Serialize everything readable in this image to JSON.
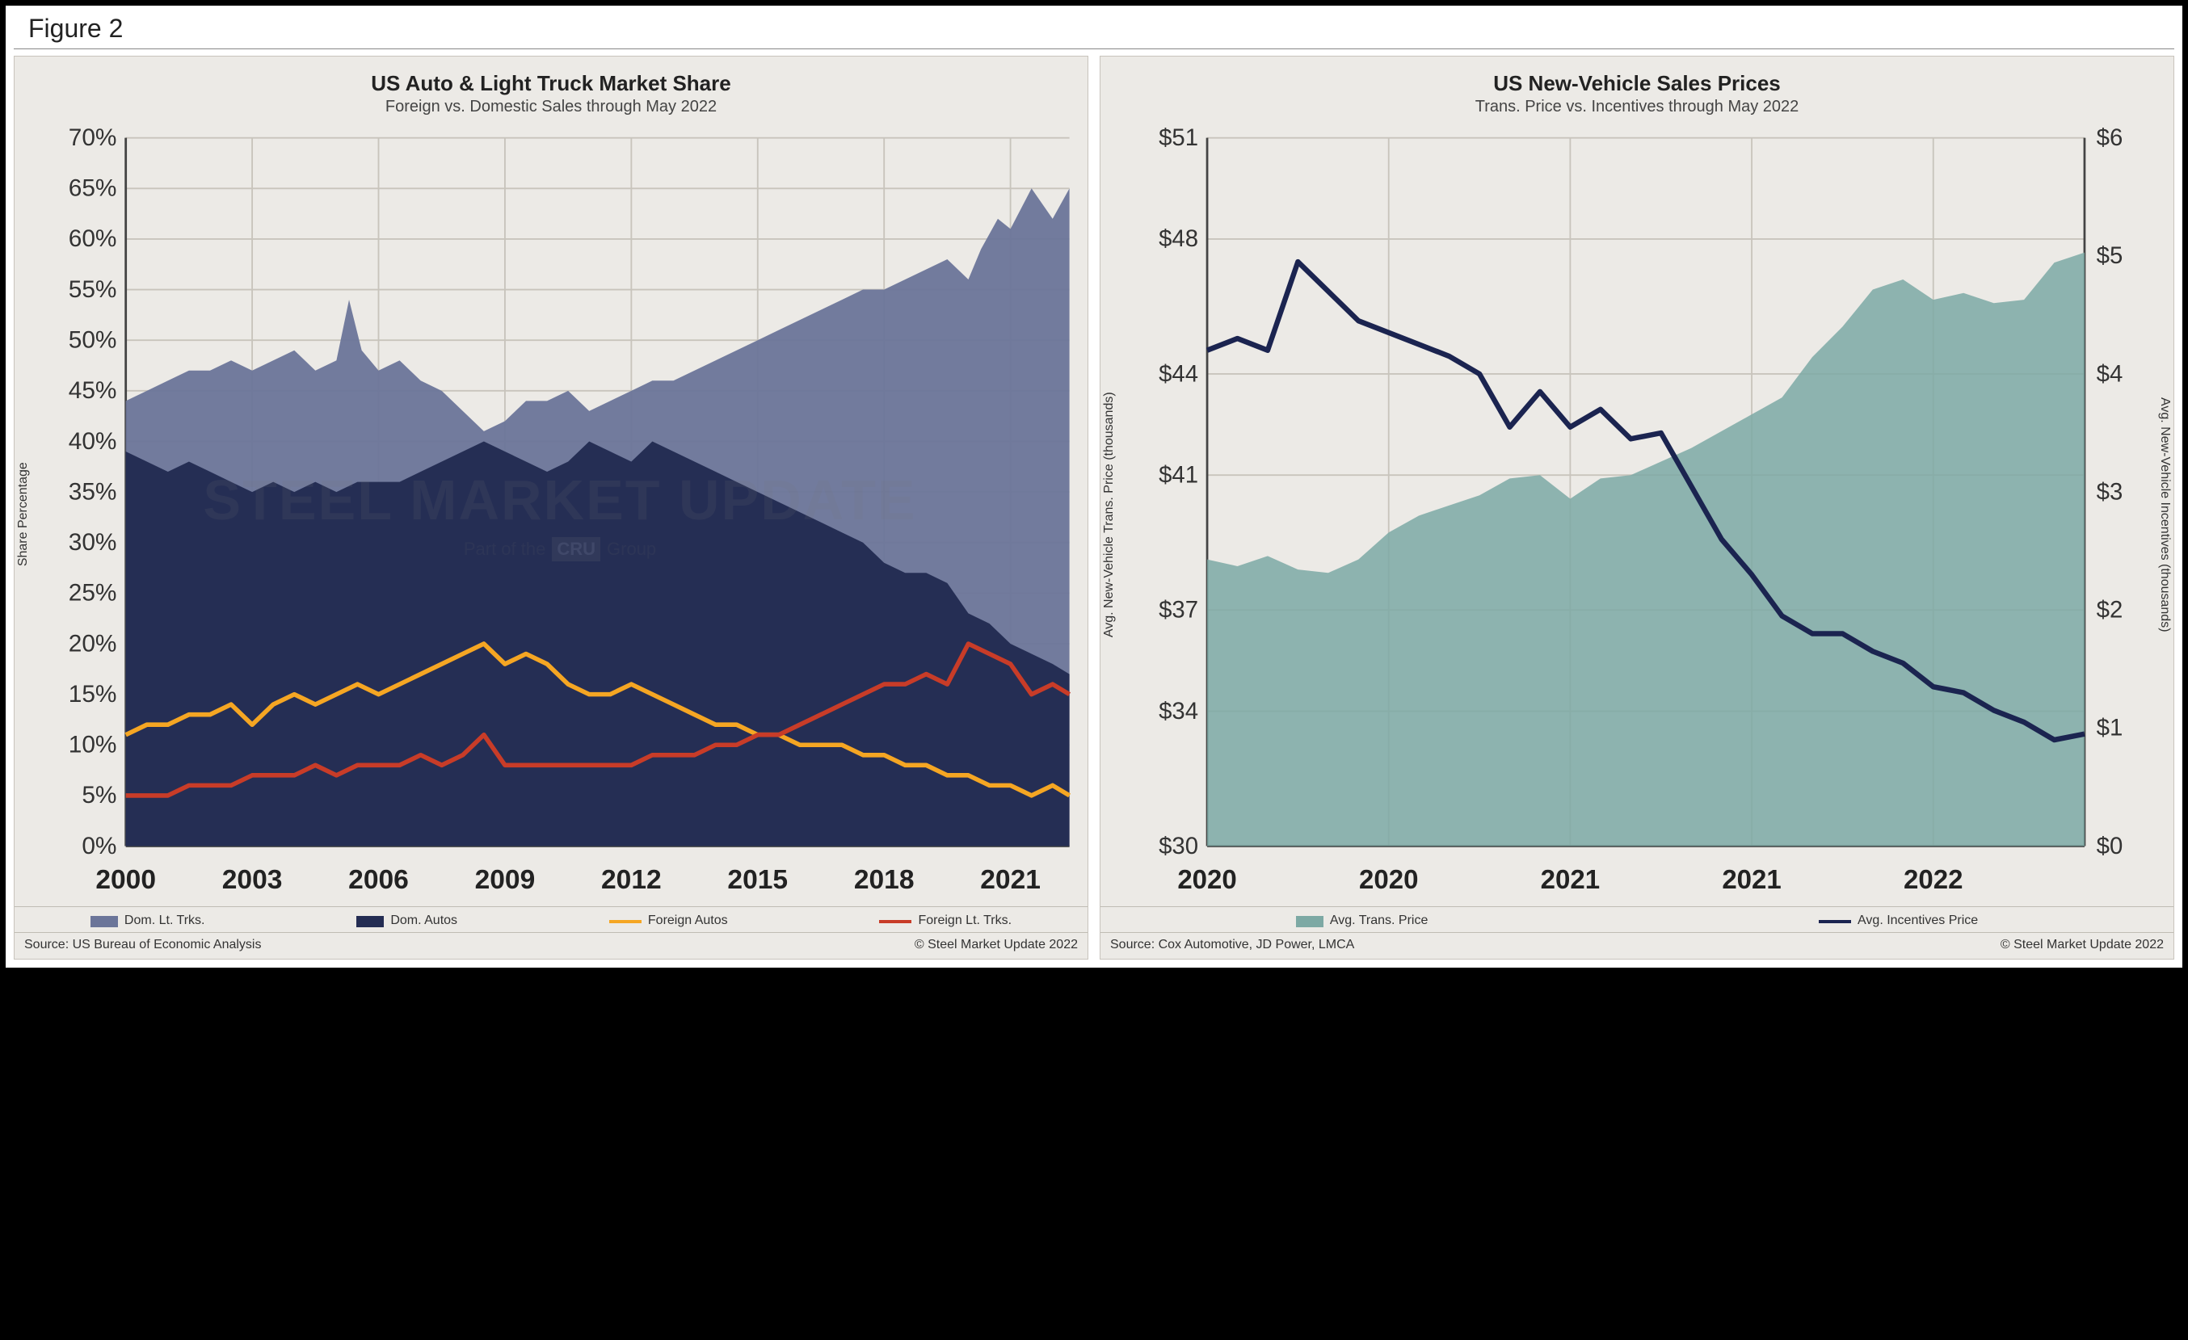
{
  "figure_label": "Figure 2",
  "watermark": {
    "main": "STEEL MARKET UPDATE",
    "sub_prefix": "Part of the",
    "sub_badge": "CRU",
    "sub_suffix": "Group"
  },
  "panel_background": "#eceae6",
  "chart1": {
    "title": "US Auto & Light Truck Market Share",
    "subtitle": "Foreign vs. Domestic Sales through May 2022",
    "y_label": "Share Percentage",
    "ylim": [
      0,
      70
    ],
    "ytick_step": 5,
    "y_suffix": "%",
    "x_start": 2000,
    "x_end": 2022.4,
    "x_ticks": [
      2000,
      2003,
      2006,
      2009,
      2012,
      2015,
      2018,
      2021
    ],
    "grid_color": "#c8c4bc",
    "series": {
      "dom_lt_trks": {
        "label": "Dom. Lt. Trks.",
        "type": "area",
        "color": "#6b7599",
        "opacity": 0.95,
        "data": [
          [
            2000,
            44
          ],
          [
            2000.5,
            45
          ],
          [
            2001,
            46
          ],
          [
            2001.5,
            47
          ],
          [
            2002,
            47
          ],
          [
            2002.5,
            48
          ],
          [
            2003,
            47
          ],
          [
            2003.5,
            48
          ],
          [
            2004,
            49
          ],
          [
            2004.5,
            47
          ],
          [
            2005,
            48
          ],
          [
            2005.3,
            54
          ],
          [
            2005.6,
            49
          ],
          [
            2006,
            47
          ],
          [
            2006.5,
            48
          ],
          [
            2007,
            46
          ],
          [
            2007.5,
            45
          ],
          [
            2008,
            43
          ],
          [
            2008.5,
            41
          ],
          [
            2009,
            42
          ],
          [
            2009.5,
            44
          ],
          [
            2010,
            44
          ],
          [
            2010.5,
            45
          ],
          [
            2011,
            43
          ],
          [
            2011.5,
            44
          ],
          [
            2012,
            45
          ],
          [
            2012.5,
            46
          ],
          [
            2013,
            46
          ],
          [
            2013.5,
            47
          ],
          [
            2014,
            48
          ],
          [
            2014.5,
            49
          ],
          [
            2015,
            50
          ],
          [
            2015.5,
            51
          ],
          [
            2016,
            52
          ],
          [
            2016.5,
            53
          ],
          [
            2017,
            54
          ],
          [
            2017.5,
            55
          ],
          [
            2018,
            55
          ],
          [
            2018.5,
            56
          ],
          [
            2019,
            57
          ],
          [
            2019.5,
            58
          ],
          [
            2020,
            56
          ],
          [
            2020.3,
            59
          ],
          [
            2020.7,
            62
          ],
          [
            2021,
            61
          ],
          [
            2021.5,
            65
          ],
          [
            2022,
            62
          ],
          [
            2022.4,
            65
          ]
        ]
      },
      "dom_autos": {
        "label": "Dom. Autos",
        "type": "area",
        "color": "#242d53",
        "opacity": 0.98,
        "data": [
          [
            2000,
            39
          ],
          [
            2000.5,
            38
          ],
          [
            2001,
            37
          ],
          [
            2001.5,
            38
          ],
          [
            2002,
            37
          ],
          [
            2002.5,
            36
          ],
          [
            2003,
            35
          ],
          [
            2003.5,
            36
          ],
          [
            2004,
            35
          ],
          [
            2004.5,
            36
          ],
          [
            2005,
            35
          ],
          [
            2005.5,
            36
          ],
          [
            2006,
            36
          ],
          [
            2006.5,
            36
          ],
          [
            2007,
            37
          ],
          [
            2007.5,
            38
          ],
          [
            2008,
            39
          ],
          [
            2008.5,
            40
          ],
          [
            2009,
            39
          ],
          [
            2009.5,
            38
          ],
          [
            2010,
            37
          ],
          [
            2010.5,
            38
          ],
          [
            2011,
            40
          ],
          [
            2011.5,
            39
          ],
          [
            2012,
            38
          ],
          [
            2012.5,
            40
          ],
          [
            2013,
            39
          ],
          [
            2013.5,
            38
          ],
          [
            2014,
            37
          ],
          [
            2014.5,
            36
          ],
          [
            2015,
            35
          ],
          [
            2015.5,
            34
          ],
          [
            2016,
            33
          ],
          [
            2016.5,
            32
          ],
          [
            2017,
            31
          ],
          [
            2017.5,
            30
          ],
          [
            2018,
            28
          ],
          [
            2018.5,
            27
          ],
          [
            2019,
            27
          ],
          [
            2019.5,
            26
          ],
          [
            2020,
            23
          ],
          [
            2020.5,
            22
          ],
          [
            2021,
            20
          ],
          [
            2021.5,
            19
          ],
          [
            2022,
            18
          ],
          [
            2022.4,
            17
          ]
        ]
      },
      "foreign_autos": {
        "label": "Foreign Autos",
        "type": "line",
        "color": "#f5a623",
        "width": 3,
        "data": [
          [
            2000,
            11
          ],
          [
            2000.5,
            12
          ],
          [
            2001,
            12
          ],
          [
            2001.5,
            13
          ],
          [
            2002,
            13
          ],
          [
            2002.5,
            14
          ],
          [
            2003,
            12
          ],
          [
            2003.5,
            14
          ],
          [
            2004,
            15
          ],
          [
            2004.5,
            14
          ],
          [
            2005,
            15
          ],
          [
            2005.5,
            16
          ],
          [
            2006,
            15
          ],
          [
            2006.5,
            16
          ],
          [
            2007,
            17
          ],
          [
            2007.5,
            18
          ],
          [
            2008,
            19
          ],
          [
            2008.5,
            20
          ],
          [
            2009,
            18
          ],
          [
            2009.5,
            19
          ],
          [
            2010,
            18
          ],
          [
            2010.5,
            16
          ],
          [
            2011,
            15
          ],
          [
            2011.5,
            15
          ],
          [
            2012,
            16
          ],
          [
            2012.5,
            15
          ],
          [
            2013,
            14
          ],
          [
            2013.5,
            13
          ],
          [
            2014,
            12
          ],
          [
            2014.5,
            12
          ],
          [
            2015,
            11
          ],
          [
            2015.5,
            11
          ],
          [
            2016,
            10
          ],
          [
            2016.5,
            10
          ],
          [
            2017,
            10
          ],
          [
            2017.5,
            9
          ],
          [
            2018,
            9
          ],
          [
            2018.5,
            8
          ],
          [
            2019,
            8
          ],
          [
            2019.5,
            7
          ],
          [
            2020,
            7
          ],
          [
            2020.5,
            6
          ],
          [
            2021,
            6
          ],
          [
            2021.5,
            5
          ],
          [
            2022,
            6
          ],
          [
            2022.4,
            5
          ]
        ]
      },
      "foreign_lt_trks": {
        "label": "Foreign Lt. Trks.",
        "type": "line",
        "color": "#c83c28",
        "width": 3,
        "data": [
          [
            2000,
            5
          ],
          [
            2000.5,
            5
          ],
          [
            2001,
            5
          ],
          [
            2001.5,
            6
          ],
          [
            2002,
            6
          ],
          [
            2002.5,
            6
          ],
          [
            2003,
            7
          ],
          [
            2003.5,
            7
          ],
          [
            2004,
            7
          ],
          [
            2004.5,
            8
          ],
          [
            2005,
            7
          ],
          [
            2005.5,
            8
          ],
          [
            2006,
            8
          ],
          [
            2006.5,
            8
          ],
          [
            2007,
            9
          ],
          [
            2007.5,
            8
          ],
          [
            2008,
            9
          ],
          [
            2008.5,
            11
          ],
          [
            2009,
            8
          ],
          [
            2009.5,
            8
          ],
          [
            2010,
            8
          ],
          [
            2010.5,
            8
          ],
          [
            2011,
            8
          ],
          [
            2011.5,
            8
          ],
          [
            2012,
            8
          ],
          [
            2012.5,
            9
          ],
          [
            2013,
            9
          ],
          [
            2013.5,
            9
          ],
          [
            2014,
            10
          ],
          [
            2014.5,
            10
          ],
          [
            2015,
            11
          ],
          [
            2015.5,
            11
          ],
          [
            2016,
            12
          ],
          [
            2016.5,
            13
          ],
          [
            2017,
            14
          ],
          [
            2017.5,
            15
          ],
          [
            2018,
            16
          ],
          [
            2018.5,
            16
          ],
          [
            2019,
            17
          ],
          [
            2019.5,
            16
          ],
          [
            2020,
            20
          ],
          [
            2020.5,
            19
          ],
          [
            2021,
            18
          ],
          [
            2021.5,
            15
          ],
          [
            2022,
            16
          ],
          [
            2022.4,
            15
          ]
        ]
      }
    },
    "legend_order": [
      "dom_lt_trks",
      "dom_autos",
      "foreign_autos",
      "foreign_lt_trks"
    ],
    "source": "Source: US Bureau of Economic Analysis",
    "copyright": "© Steel Market Update 2022"
  },
  "chart2": {
    "title": "US New-Vehicle Sales Prices",
    "subtitle": "Trans. Price vs. Incentives through May 2022",
    "y_label_left": "Avg. New-Vehicle Trans. Price (thousands)",
    "y_label_right": "Avg. New-Vehicle Incentives (thousands)",
    "ylim_left": [
      30,
      51
    ],
    "yticks_left": [
      30,
      34,
      37,
      41,
      44,
      48,
      51
    ],
    "y_prefix_left": "$",
    "ylim_right": [
      0,
      6
    ],
    "ytick_step_right": 1,
    "y_prefix_right": "$",
    "x_start": 0,
    "x_end": 29,
    "x_ticks": [
      {
        "pos": 0,
        "label": "2020"
      },
      {
        "pos": 6,
        "label": "2020"
      },
      {
        "pos": 12,
        "label": "2021"
      },
      {
        "pos": 18,
        "label": "2021"
      },
      {
        "pos": 24,
        "label": "2022"
      }
    ],
    "grid_color": "#c8c4bc",
    "series": {
      "trans_price": {
        "label": "Avg. Trans. Price",
        "type": "area",
        "axis": "left",
        "color": "#7da9a4",
        "opacity": 0.85,
        "data": [
          [
            0,
            38.5
          ],
          [
            1,
            38.3
          ],
          [
            2,
            38.6
          ],
          [
            3,
            38.2
          ],
          [
            4,
            38.1
          ],
          [
            5,
            38.5
          ],
          [
            6,
            39.3
          ],
          [
            7,
            39.8
          ],
          [
            8,
            40.1
          ],
          [
            9,
            40.4
          ],
          [
            10,
            40.9
          ],
          [
            11,
            41.0
          ],
          [
            12,
            40.3
          ],
          [
            13,
            40.9
          ],
          [
            14,
            41.0
          ],
          [
            15,
            41.4
          ],
          [
            16,
            41.8
          ],
          [
            17,
            42.3
          ],
          [
            18,
            42.8
          ],
          [
            19,
            43.3
          ],
          [
            20,
            44.5
          ],
          [
            21,
            45.4
          ],
          [
            22,
            46.5
          ],
          [
            23,
            46.8
          ],
          [
            24,
            46.2
          ],
          [
            25,
            46.4
          ],
          [
            26,
            46.1
          ],
          [
            27,
            46.2
          ],
          [
            28,
            47.3
          ],
          [
            29,
            47.6
          ]
        ]
      },
      "incentives": {
        "label": "Avg. Incentives Price",
        "type": "line",
        "axis": "right",
        "color": "#1b2450",
        "width": 3.5,
        "data": [
          [
            0,
            4.2
          ],
          [
            1,
            4.3
          ],
          [
            2,
            4.2
          ],
          [
            3,
            4.95
          ],
          [
            4,
            4.7
          ],
          [
            5,
            4.45
          ],
          [
            6,
            4.35
          ],
          [
            7,
            4.25
          ],
          [
            8,
            4.15
          ],
          [
            9,
            4.0
          ],
          [
            10,
            3.55
          ],
          [
            11,
            3.85
          ],
          [
            12,
            3.55
          ],
          [
            13,
            3.7
          ],
          [
            14,
            3.45
          ],
          [
            15,
            3.5
          ],
          [
            16,
            3.05
          ],
          [
            17,
            2.6
          ],
          [
            18,
            2.3
          ],
          [
            19,
            1.95
          ],
          [
            20,
            1.8
          ],
          [
            21,
            1.8
          ],
          [
            22,
            1.65
          ],
          [
            23,
            1.55
          ],
          [
            24,
            1.35
          ],
          [
            25,
            1.3
          ],
          [
            26,
            1.15
          ],
          [
            27,
            1.05
          ],
          [
            28,
            0.9
          ],
          [
            29,
            0.95
          ]
        ]
      }
    },
    "legend_order": [
      "trans_price",
      "incentives"
    ],
    "source": "Source: Cox Automotive, JD Power, LMCA",
    "copyright": "© Steel Market Update 2022"
  }
}
